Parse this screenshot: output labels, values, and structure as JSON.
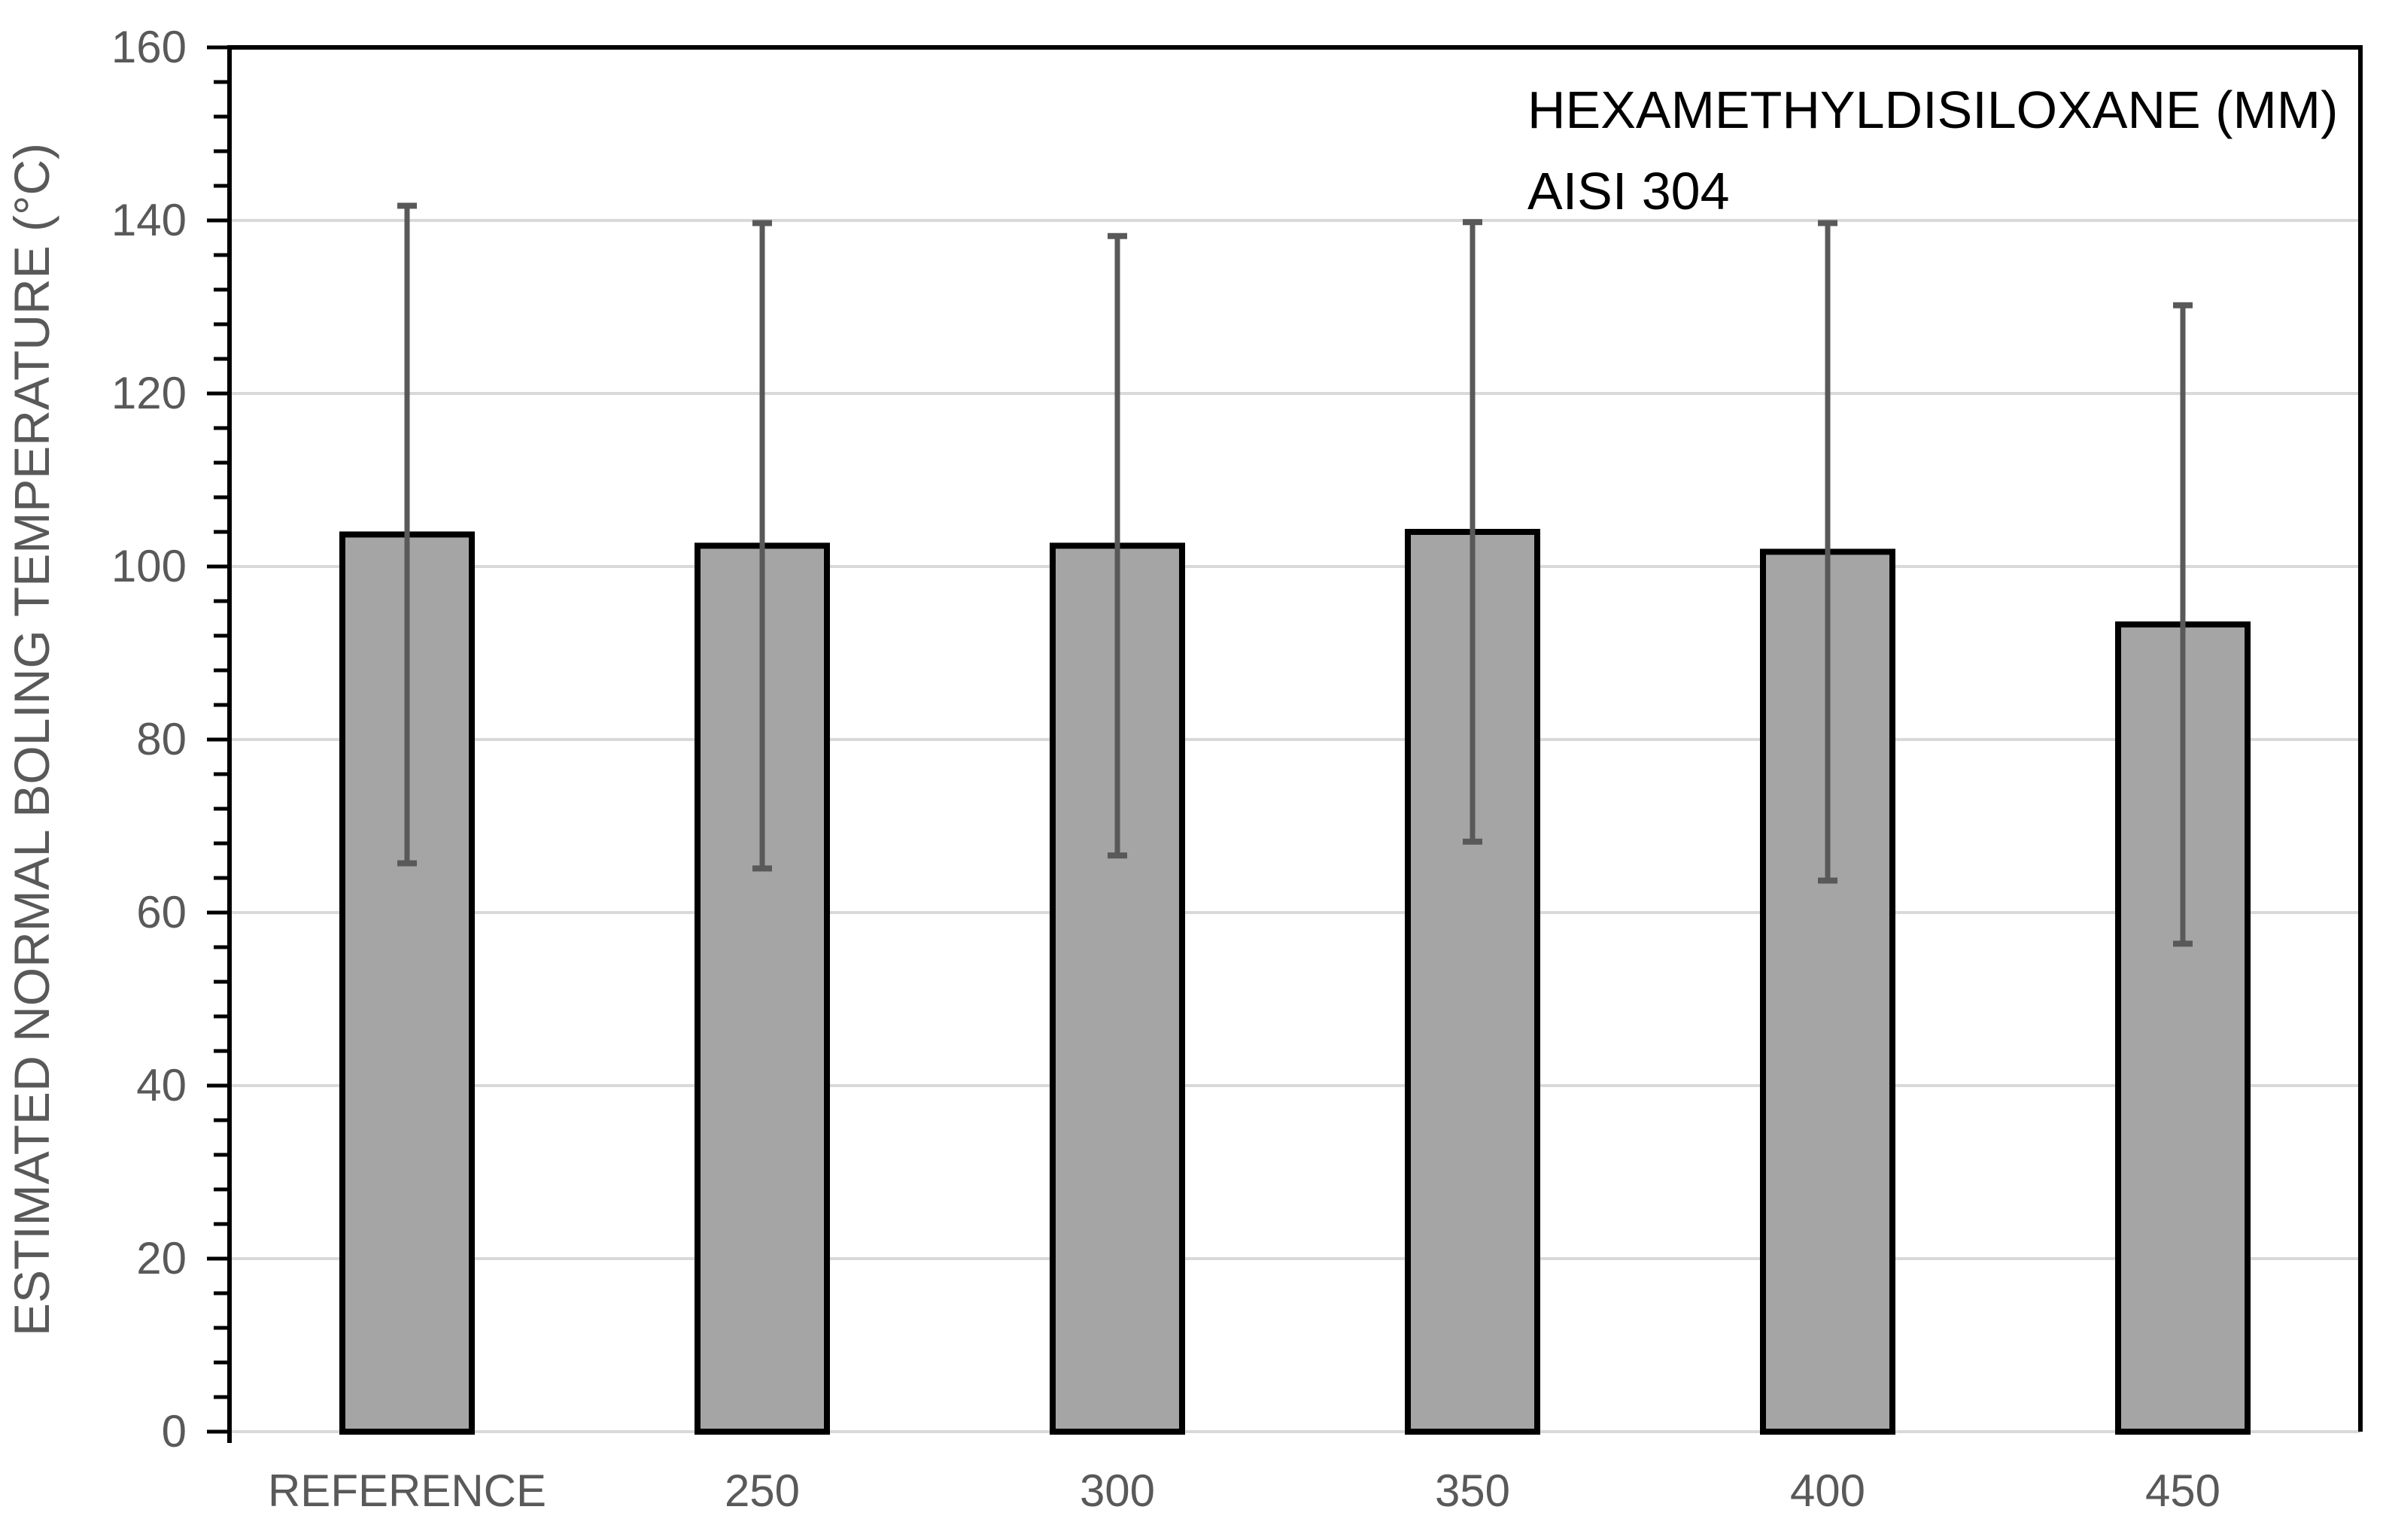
{
  "chart_data": {
    "type": "bar",
    "title": "",
    "annotation_lines": [
      "HEXAMETHYLDISILOXANE (MM)",
      "AISI 304"
    ],
    "ylabel": "ESTIMATED NORMAL BOLING TEMPERATURE (°C)",
    "xlabel": "",
    "categories": [
      "REFERENCE",
      "250",
      "300",
      "350",
      "400",
      "450"
    ],
    "values": [
      103.7,
      102.4,
      102.4,
      104.0,
      101.7,
      93.3
    ],
    "error_bars": [
      38.0,
      37.3,
      35.8,
      35.8,
      38.0,
      36.9
    ],
    "error_bar_tops": [
      141.7,
      139.7,
      138.2,
      139.8,
      139.7,
      130.2
    ],
    "error_bar_bottoms": [
      65.7,
      65.1,
      66.6,
      68.2,
      63.7,
      56.4
    ],
    "ylim": [
      0,
      160
    ],
    "ytick_interval": 20,
    "yticks": [
      0,
      20,
      40,
      60,
      80,
      100,
      120,
      140,
      160
    ],
    "minor_tick_interval": 4,
    "grid": true,
    "legend": "none",
    "colors": {
      "background": "#FFFFFF",
      "bar_fill": "#A5A5A5",
      "bar_border": "#000000",
      "error_bar": "#595959",
      "gridline": "#D9D9D9",
      "axis_line": "#000000",
      "tick_mark": "#000000",
      "tick_label": "#595959",
      "axis_title": "#595959",
      "annotation_text": "#000000"
    }
  }
}
